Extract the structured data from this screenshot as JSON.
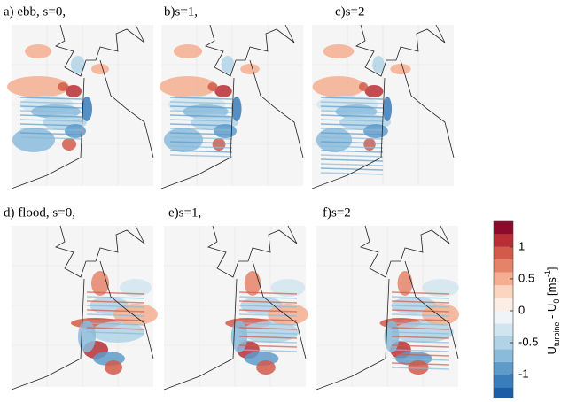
{
  "chart_data": {
    "type": "contour",
    "panels": [
      {
        "label": "a) ebb, s=0,"
      },
      {
        "label": "b)s=1,"
      },
      {
        "label": "c)s=2"
      },
      {
        "label": "d) flood, s=0,"
      },
      {
        "label": "e)s=1,"
      },
      {
        "label": "f)s=2"
      }
    ],
    "colorbar": {
      "label": [
        "U",
        "turbine",
        " - U",
        "0",
        " [ms",
        "-1",
        "]"
      ],
      "levels": [
        -1.4,
        -1.2,
        -1.0,
        -0.8,
        -0.6,
        -0.4,
        -0.2,
        0,
        0.2,
        0.4,
        0.6,
        0.8,
        1.0,
        1.2,
        1.4
      ],
      "colors": [
        "#1b5ea8",
        "#3a7dbb",
        "#5e9bcb",
        "#8abbda",
        "#b0d3e6",
        "#d1e5f0",
        "#eef4f8",
        "#fbeee6",
        "#fcd5c0",
        "#f5ae8f",
        "#e58368",
        "#d25a4a",
        "#b72e35",
        "#8c0a2a"
      ],
      "ylim": [
        -1.4,
        1.4
      ],
      "yticks": [
        -1,
        -0.5,
        0,
        0.5,
        1
      ]
    }
  }
}
